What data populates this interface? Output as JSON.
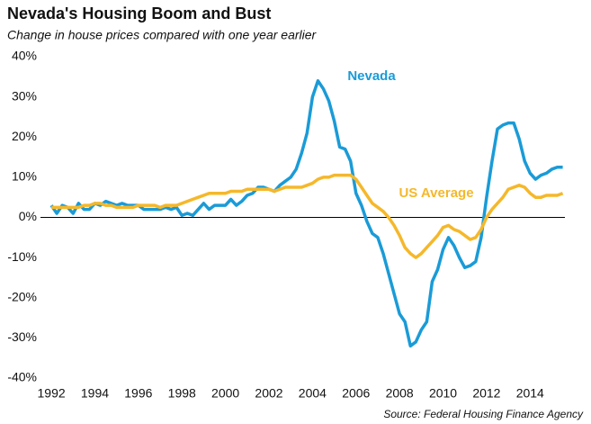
{
  "chart_data": {
    "type": "line",
    "title": "Nevada's Housing Boom and Bust",
    "subtitle": "Change in house prices compared with one year earlier",
    "source": "Source: Federal Housing Finance Agency",
    "x": [
      1992,
      1992.25,
      1992.5,
      1992.75,
      1993,
      1993.25,
      1993.5,
      1993.75,
      1994,
      1994.25,
      1994.5,
      1994.75,
      1995,
      1995.25,
      1995.5,
      1995.75,
      1996,
      1996.25,
      1996.5,
      1996.75,
      1997,
      1997.25,
      1997.5,
      1997.75,
      1998,
      1998.25,
      1998.5,
      1998.75,
      1999,
      1999.25,
      1999.5,
      1999.75,
      2000,
      2000.25,
      2000.5,
      2000.75,
      2001,
      2001.25,
      2001.5,
      2001.75,
      2002,
      2002.25,
      2002.5,
      2002.75,
      2003,
      2003.25,
      2003.5,
      2003.75,
      2004,
      2004.25,
      2004.5,
      2004.75,
      2005,
      2005.25,
      2005.5,
      2005.75,
      2006,
      2006.25,
      2006.5,
      2006.75,
      2007,
      2007.25,
      2007.5,
      2007.75,
      2008,
      2008.25,
      2008.5,
      2008.75,
      2009,
      2009.25,
      2009.5,
      2009.75,
      2010,
      2010.25,
      2010.5,
      2010.75,
      2011,
      2011.25,
      2011.5,
      2011.75,
      2012,
      2012.25,
      2012.5,
      2012.75,
      2013,
      2013.25,
      2013.5,
      2013.75,
      2014,
      2014.25,
      2014.5,
      2014.75,
      2015,
      2015.25,
      2015.5
    ],
    "series": [
      {
        "name": "Nevada",
        "color": "#1a9bd7",
        "values": [
          3,
          1,
          3,
          2.5,
          1,
          3.5,
          2,
          2,
          3.5,
          3,
          4,
          3.5,
          3,
          3.5,
          3,
          3,
          3,
          2,
          2,
          2,
          2,
          2.5,
          2,
          2.5,
          0.5,
          1,
          0.5,
          2,
          3.5,
          2,
          3,
          3,
          3,
          4.5,
          3,
          4,
          5.5,
          6,
          7.5,
          7.5,
          7,
          6.5,
          8,
          9,
          10,
          12,
          16,
          21,
          30,
          34,
          32,
          29,
          24,
          17.5,
          17,
          14,
          6,
          3,
          -1,
          -4,
          -5,
          -9,
          -14,
          -19,
          -24,
          -26,
          -32,
          -31,
          -28,
          -26,
          -16,
          -13,
          -8,
          -5,
          -7,
          -10,
          -12.5,
          -12,
          -11,
          -5,
          5,
          14,
          22,
          23,
          23.5,
          23.5,
          19.5,
          14,
          11,
          9.5,
          10.5,
          11,
          12,
          12.5,
          12.5
        ]
      },
      {
        "name": "US Average",
        "color": "#f5b82a",
        "values": [
          2.5,
          2.5,
          2.5,
          2.5,
          2.5,
          2.5,
          3,
          3,
          3.5,
          3.5,
          3,
          3,
          2.5,
          2.5,
          2.5,
          2.5,
          3,
          3,
          3,
          3,
          2.5,
          3,
          3,
          3,
          3.5,
          4,
          4.5,
          5,
          5.5,
          6,
          6,
          6,
          6,
          6.5,
          6.5,
          6.5,
          7,
          7,
          7,
          7,
          7,
          6.5,
          7,
          7.5,
          7.5,
          7.5,
          7.5,
          8,
          8.5,
          9.5,
          10,
          10,
          10.5,
          10.5,
          10.5,
          10.5,
          9.5,
          7.5,
          5.5,
          3.5,
          2.5,
          1.5,
          0,
          -2,
          -4.5,
          -7.5,
          -9,
          -10,
          -9,
          -7.5,
          -6,
          -4.5,
          -2.5,
          -2,
          -3,
          -3.5,
          -4.5,
          -5.5,
          -5,
          -3,
          0,
          2,
          3.5,
          5,
          7,
          7.5,
          8,
          7.5,
          6,
          5,
          5,
          5.5,
          5.5,
          5.5,
          6
        ]
      }
    ],
    "xlim": [
      1991.5,
      2015.6
    ],
    "xticks": [
      1992,
      1994,
      1996,
      1998,
      2000,
      2002,
      2004,
      2006,
      2008,
      2010,
      2012,
      2014
    ],
    "ylim": [
      -40,
      40
    ],
    "yticks": [
      {
        "value": 40,
        "label": "40%"
      },
      {
        "value": 30,
        "label": "30%"
      },
      {
        "value": 20,
        "label": "20%"
      },
      {
        "value": 10,
        "label": "10%"
      },
      {
        "value": 0,
        "label": "0%"
      },
      {
        "value": -10,
        "label": "-10%"
      },
      {
        "value": -20,
        "label": "-20%"
      },
      {
        "value": -30,
        "label": "-30%"
      },
      {
        "value": -40,
        "label": "-40%"
      }
    ]
  }
}
